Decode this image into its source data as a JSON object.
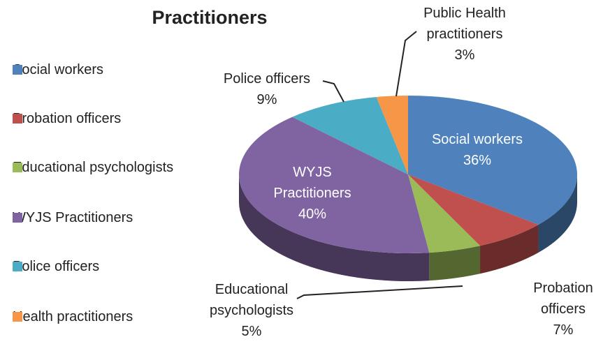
{
  "chart_data": {
    "type": "pie3d",
    "title": "Practitioners",
    "categories": [
      "Social workers",
      "Probation officers",
      "Educational psychologists",
      "WYJS Practitioners",
      "Police officers",
      "Health practitioners"
    ],
    "label_names": [
      "Social workers",
      "Probation officers",
      "Educational psychologists",
      "WYJS Practitioners",
      "Police officers",
      "Public Health practitioners"
    ],
    "values": [
      36,
      7,
      5,
      40,
      9,
      3
    ],
    "value_labels": [
      "36%",
      "7%",
      "5%",
      "40%",
      "9%",
      "3%"
    ],
    "colors": [
      "#4F81BD",
      "#C0504D",
      "#9BBB59",
      "#8064A2",
      "#4BACC6",
      "#F79646"
    ],
    "legend": "left"
  }
}
